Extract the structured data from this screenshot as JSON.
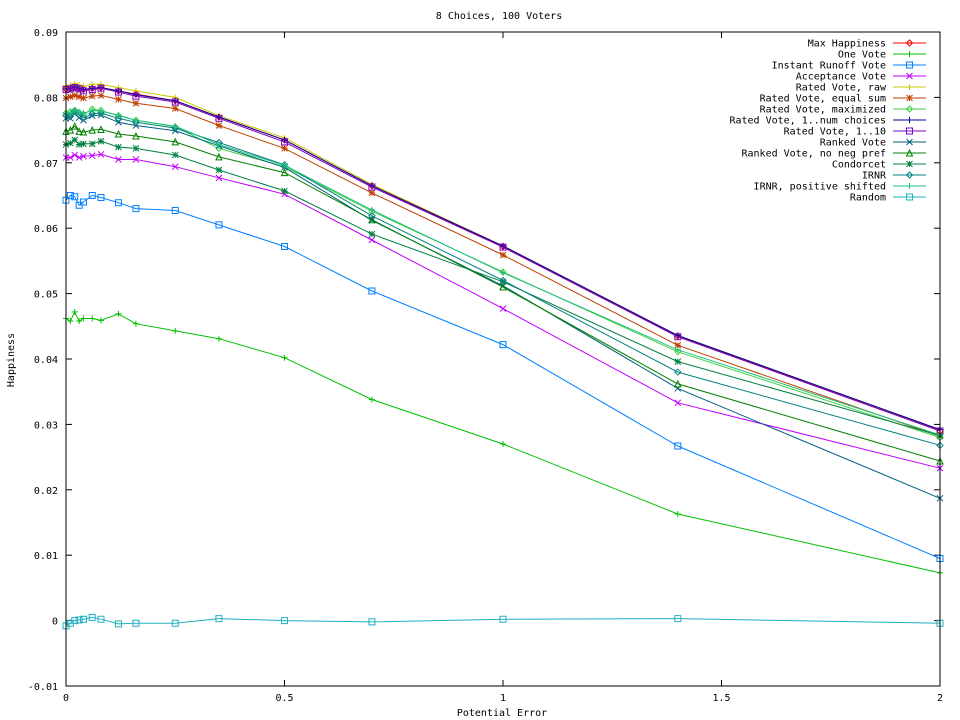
{
  "chart_data": {
    "type": "line",
    "title": "8 Choices, 100 Voters",
    "xlabel": "Potential Error",
    "ylabel": "Happiness",
    "xlim": [
      0,
      2
    ],
    "ylim": [
      -0.01,
      0.09
    ],
    "xticks": [
      0,
      0.5,
      1,
      1.5,
      2
    ],
    "xtick_labels": [
      "0",
      "0.5",
      "1",
      "1.5",
      "2"
    ],
    "yticks": [
      -0.01,
      0,
      0.01,
      0.02,
      0.03,
      0.04,
      0.05,
      0.06,
      0.07,
      0.08,
      0.09
    ],
    "ytick_labels": [
      "-0.01",
      "0",
      "0.01",
      "0.02",
      "0.03",
      "0.04",
      "0.05",
      "0.06",
      "0.07",
      "0.08",
      "0.09"
    ],
    "grid": false,
    "legend_position": "top-right",
    "x": [
      0,
      0.01,
      0.02,
      0.03,
      0.04,
      0.06,
      0.08,
      0.12,
      0.16,
      0.25,
      0.35,
      0.5,
      0.7,
      1.0,
      1.4,
      2.0
    ],
    "series": [
      {
        "name": "Max Happiness",
        "color": "#ff0000",
        "marker": "diamond",
        "values": [
          0.0813,
          0.0814,
          0.0816,
          0.0814,
          0.0812,
          0.0814,
          0.0815,
          0.081,
          0.0805,
          0.0795,
          0.077,
          0.0735,
          0.0665,
          0.0572,
          0.0435,
          0.029
        ]
      },
      {
        "name": "One Vote",
        "color": "#00c000",
        "marker": "plus",
        "values": [
          0.0462,
          0.0458,
          0.0472,
          0.0458,
          0.0462,
          0.0462,
          0.0459,
          0.0469,
          0.0454,
          0.0443,
          0.0431,
          0.0402,
          0.0338,
          0.027,
          0.0163,
          0.0073
        ]
      },
      {
        "name": "Instant Runoff Vote",
        "color": "#0080ff",
        "marker": "square",
        "values": [
          0.0643,
          0.065,
          0.0648,
          0.0635,
          0.064,
          0.065,
          0.0647,
          0.0639,
          0.063,
          0.0627,
          0.0605,
          0.0572,
          0.0504,
          0.0422,
          0.0267,
          0.0095
        ]
      },
      {
        "name": "Acceptance Vote",
        "color": "#c000ff",
        "marker": "x",
        "values": [
          0.0708,
          0.0708,
          0.0712,
          0.0708,
          0.071,
          0.0711,
          0.0713,
          0.0705,
          0.0705,
          0.0694,
          0.0677,
          0.0652,
          0.0582,
          0.0477,
          0.0333,
          0.0233
        ]
      },
      {
        "name": "Rated Vote, raw",
        "color": "#c8c800",
        "marker": "plus",
        "values": [
          0.0818,
          0.0819,
          0.0821,
          0.0819,
          0.0817,
          0.082,
          0.082,
          0.0815,
          0.081,
          0.08,
          0.0772,
          0.0738,
          0.0667,
          0.0573,
          0.0436,
          0.0292
        ]
      },
      {
        "name": "Rated Vote, equal sum",
        "color": "#c04000",
        "marker": "star",
        "values": [
          0.0799,
          0.0801,
          0.0803,
          0.0801,
          0.0799,
          0.0802,
          0.0803,
          0.0797,
          0.0791,
          0.0783,
          0.0757,
          0.0722,
          0.0654,
          0.0559,
          0.0421,
          0.0282
        ]
      },
      {
        "name": "Rated Vote, maximized",
        "color": "#40d040",
        "marker": "diamond",
        "values": [
          0.0776,
          0.0778,
          0.078,
          0.0777,
          0.0774,
          0.0782,
          0.078,
          0.0772,
          0.0765,
          0.0755,
          0.0722,
          0.0694,
          0.0626,
          0.0533,
          0.0411,
          0.028
        ]
      },
      {
        "name": "Rated Vote, 1..num choices",
        "color": "#0000a0",
        "marker": "plus",
        "values": [
          0.0813,
          0.0814,
          0.0816,
          0.0814,
          0.0812,
          0.0814,
          0.0815,
          0.081,
          0.0804,
          0.0795,
          0.077,
          0.0735,
          0.0665,
          0.0573,
          0.0436,
          0.0292
        ]
      },
      {
        "name": "Rated Vote, 1..10",
        "color": "#8000c0",
        "marker": "square",
        "values": [
          0.0812,
          0.0813,
          0.0815,
          0.0813,
          0.081,
          0.0812,
          0.0814,
          0.0808,
          0.0802,
          0.0793,
          0.0768,
          0.0732,
          0.0663,
          0.0571,
          0.0434,
          0.029
        ]
      },
      {
        "name": "Ranked Vote",
        "color": "#006080",
        "marker": "x",
        "values": [
          0.0768,
          0.0768,
          0.0775,
          0.0769,
          0.0765,
          0.0772,
          0.0773,
          0.0762,
          0.0757,
          0.0749,
          0.0726,
          0.0693,
          0.0612,
          0.0512,
          0.0355,
          0.0187
        ]
      },
      {
        "name": "Ranked Vote, no neg pref",
        "color": "#008000",
        "marker": "triangle",
        "values": [
          0.0748,
          0.075,
          0.0756,
          0.0748,
          0.0747,
          0.075,
          0.0751,
          0.0744,
          0.0741,
          0.0732,
          0.0709,
          0.0685,
          0.0613,
          0.051,
          0.0362,
          0.0244
        ]
      },
      {
        "name": "Condorcet",
        "color": "#008040",
        "marker": "star",
        "values": [
          0.0728,
          0.073,
          0.0735,
          0.0728,
          0.0729,
          0.0729,
          0.0733,
          0.0724,
          0.0722,
          0.0712,
          0.0689,
          0.0657,
          0.0591,
          0.0518,
          0.0396,
          0.0283
        ]
      },
      {
        "name": "IRNR",
        "color": "#008080",
        "marker": "diamond",
        "values": [
          0.0772,
          0.0771,
          0.0779,
          0.0773,
          0.0769,
          0.0775,
          0.0776,
          0.0768,
          0.0762,
          0.0753,
          0.0731,
          0.0697,
          0.0619,
          0.052,
          0.038,
          0.0268
        ]
      },
      {
        "name": "IRNR, positive shifted",
        "color": "#20c080",
        "marker": "plus",
        "values": [
          0.0776,
          0.0777,
          0.078,
          0.0778,
          0.0776,
          0.078,
          0.0779,
          0.0773,
          0.0765,
          0.0756,
          0.0728,
          0.0696,
          0.0628,
          0.0532,
          0.0414,
          0.0284
        ]
      },
      {
        "name": "Random",
        "color": "#20b0c0",
        "marker": "square",
        "values": [
          -0.0008,
          -0.0004,
          0.0,
          0.0001,
          0.0002,
          0.0005,
          0.0002,
          -0.0005,
          -0.0004,
          -0.0004,
          0.0003,
          0.0,
          -0.0002,
          0.0002,
          0.0003,
          -0.0004
        ]
      }
    ]
  }
}
